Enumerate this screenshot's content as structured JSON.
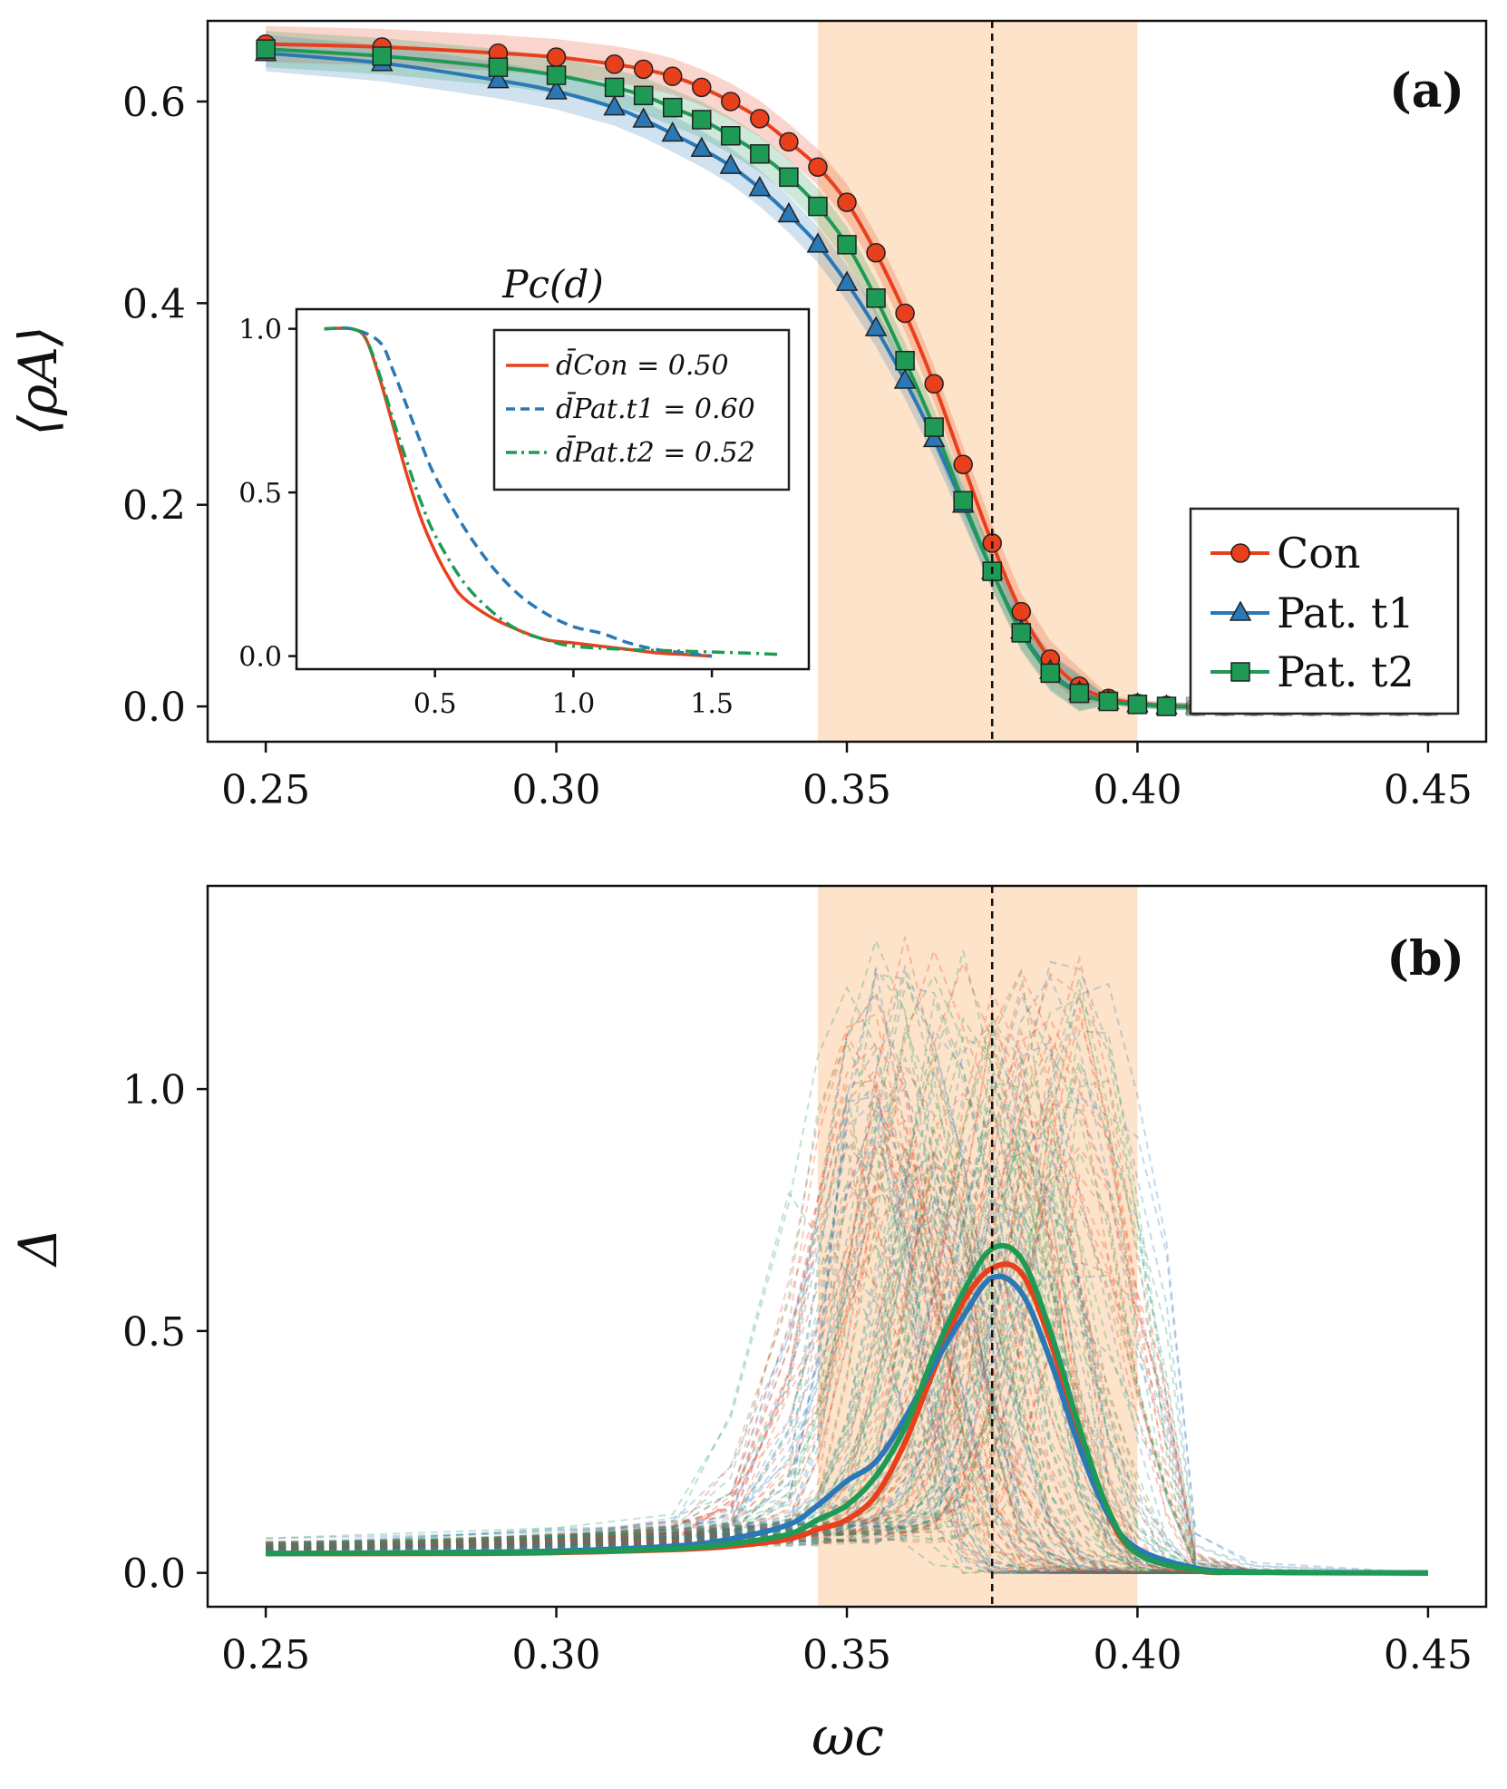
{
  "colors": {
    "con": "#e8401c",
    "pat1": "#2a78b5",
    "pat2": "#1f9a55",
    "band": "#fde3c9"
  },
  "chart_data": [
    {
      "panel": "(a)",
      "type": "line",
      "xlim": [
        0.24,
        0.46
      ],
      "ylim": [
        -0.035,
        0.68
      ],
      "xticks": [
        "0.25",
        "0.30",
        "0.35",
        "0.40",
        "0.45"
      ],
      "yticks": [
        "0.0",
        "0.2",
        "0.4",
        "0.6"
      ],
      "ylabel": "⟨ρA⟩",
      "critical_line": 0.375,
      "shaded_range": [
        0.345,
        0.4
      ],
      "legend_location": "right",
      "series": [
        {
          "key": "con",
          "name": "Con",
          "marker": "circle",
          "x": [
            0.25,
            0.27,
            0.29,
            0.3,
            0.31,
            0.315,
            0.32,
            0.325,
            0.33,
            0.335,
            0.34,
            0.345,
            0.35,
            0.355,
            0.36,
            0.365,
            0.37,
            0.375,
            0.38,
            0.385,
            0.39,
            0.395,
            0.4,
            0.405,
            0.41,
            0.415,
            0.42,
            0.425,
            0.43,
            0.435,
            0.44,
            0.445,
            0.45
          ],
          "y": [
            0.657,
            0.654,
            0.648,
            0.644,
            0.637,
            0.632,
            0.625,
            0.614,
            0.6,
            0.583,
            0.56,
            0.535,
            0.5,
            0.45,
            0.39,
            0.32,
            0.24,
            0.162,
            0.094,
            0.047,
            0.02,
            0.008,
            0.003,
            0.001,
            0.0,
            0.0,
            0.0,
            0.0,
            0.0,
            0.0,
            0.0,
            0.0,
            0.0
          ]
        },
        {
          "key": "pat1",
          "name": "Pat. t1",
          "marker": "triangle",
          "x": [
            0.25,
            0.27,
            0.29,
            0.3,
            0.31,
            0.315,
            0.32,
            0.325,
            0.33,
            0.335,
            0.34,
            0.345,
            0.35,
            0.355,
            0.36,
            0.365,
            0.37,
            0.375,
            0.38,
            0.385,
            0.39,
            0.395,
            0.4,
            0.405,
            0.41,
            0.415,
            0.42,
            0.425,
            0.43,
            0.435,
            0.44,
            0.445,
            0.45
          ],
          "y": [
            0.648,
            0.638,
            0.621,
            0.61,
            0.594,
            0.582,
            0.568,
            0.553,
            0.536,
            0.514,
            0.488,
            0.458,
            0.42,
            0.375,
            0.323,
            0.265,
            0.2,
            0.134,
            0.075,
            0.035,
            0.014,
            0.005,
            0.002,
            0.0,
            0.0,
            0.0,
            0.0,
            0.0,
            0.0,
            0.0,
            0.0,
            0.0,
            0.0
          ]
        },
        {
          "key": "pat2",
          "name": "Pat. t2",
          "marker": "square",
          "x": [
            0.25,
            0.27,
            0.29,
            0.3,
            0.31,
            0.315,
            0.32,
            0.325,
            0.33,
            0.335,
            0.34,
            0.345,
            0.35,
            0.355,
            0.36,
            0.365,
            0.37,
            0.375,
            0.38,
            0.385,
            0.39,
            0.395,
            0.4,
            0.405,
            0.41,
            0.415,
            0.42,
            0.425,
            0.43,
            0.435,
            0.44,
            0.445,
            0.45
          ],
          "y": [
            0.652,
            0.645,
            0.634,
            0.626,
            0.614,
            0.606,
            0.594,
            0.582,
            0.566,
            0.548,
            0.525,
            0.496,
            0.458,
            0.405,
            0.343,
            0.277,
            0.204,
            0.134,
            0.073,
            0.033,
            0.013,
            0.005,
            0.002,
            0.0,
            0.0,
            0.0,
            0.0,
            0.0,
            0.0,
            0.0,
            0.0,
            0.0,
            0.0
          ]
        }
      ]
    },
    {
      "panel": "inset",
      "type": "line",
      "title": "Pc(d)",
      "xlim": [
        0.0,
        1.85
      ],
      "ylim": [
        -0.04,
        1.06
      ],
      "xticks": [
        "0.5",
        "1.0",
        "1.5"
      ],
      "yticks": [
        "0.0",
        "0.5",
        "1.0"
      ],
      "series": [
        {
          "key": "con",
          "name": "d̄Con = 0.50",
          "style": "solid",
          "x": [
            0.1,
            0.2,
            0.25,
            0.3,
            0.35,
            0.4,
            0.45,
            0.5,
            0.55,
            0.6,
            0.7,
            0.8,
            0.9,
            1.0,
            1.1,
            1.2,
            1.3,
            1.4,
            1.5
          ],
          "y": [
            1.0,
            1.0,
            0.97,
            0.85,
            0.7,
            0.55,
            0.42,
            0.32,
            0.24,
            0.18,
            0.12,
            0.08,
            0.05,
            0.04,
            0.03,
            0.02,
            0.01,
            0.005,
            0.0
          ]
        },
        {
          "key": "pat1",
          "name": "d̄Pat.t1 = 0.60",
          "style": "dashed",
          "x": [
            0.1,
            0.2,
            0.3,
            0.35,
            0.4,
            0.45,
            0.5,
            0.6,
            0.7,
            0.8,
            0.9,
            1.0,
            1.1,
            1.2,
            1.3,
            1.4,
            1.5
          ],
          "y": [
            1.0,
            1.0,
            0.96,
            0.87,
            0.76,
            0.65,
            0.55,
            0.4,
            0.28,
            0.19,
            0.13,
            0.09,
            0.07,
            0.04,
            0.02,
            0.01,
            0.0
          ]
        },
        {
          "key": "pat2",
          "name": "d̄Pat.t2 = 0.52",
          "style": "dashdot",
          "x": [
            0.1,
            0.2,
            0.25,
            0.3,
            0.35,
            0.4,
            0.45,
            0.5,
            0.6,
            0.7,
            0.8,
            0.9,
            1.0,
            1.2,
            1.4,
            1.6,
            1.75
          ],
          "y": [
            1.0,
            1.0,
            0.97,
            0.86,
            0.72,
            0.59,
            0.47,
            0.37,
            0.23,
            0.14,
            0.08,
            0.05,
            0.03,
            0.02,
            0.015,
            0.01,
            0.005
          ]
        }
      ]
    },
    {
      "panel": "(b)",
      "type": "line",
      "xlim": [
        0.24,
        0.46
      ],
      "ylim": [
        -0.07,
        1.42
      ],
      "xticks": [
        "0.25",
        "0.30",
        "0.35",
        "0.40",
        "0.45"
      ],
      "yticks": [
        "0.0",
        "0.5",
        "1.0"
      ],
      "xlabel": "ωc",
      "ylabel": "Δ",
      "critical_line": 0.375,
      "shaded_range": [
        0.345,
        0.4
      ],
      "background_runs": "many faint dashed single-realization curves, peaks between 0.34 and 0.40",
      "series": [
        {
          "key": "con",
          "name": "Con",
          "x": [
            0.25,
            0.28,
            0.3,
            0.32,
            0.33,
            0.34,
            0.345,
            0.35,
            0.355,
            0.36,
            0.365,
            0.37,
            0.375,
            0.38,
            0.385,
            0.39,
            0.395,
            0.4,
            0.41,
            0.42,
            0.45
          ],
          "y": [
            0.04,
            0.04,
            0.042,
            0.048,
            0.055,
            0.07,
            0.09,
            0.11,
            0.16,
            0.27,
            0.42,
            0.56,
            0.63,
            0.62,
            0.48,
            0.28,
            0.12,
            0.04,
            0.005,
            0.001,
            0.0
          ]
        },
        {
          "key": "pat1",
          "name": "Pat. t1",
          "x": [
            0.25,
            0.28,
            0.3,
            0.32,
            0.33,
            0.34,
            0.345,
            0.35,
            0.355,
            0.36,
            0.365,
            0.37,
            0.375,
            0.38,
            0.385,
            0.39,
            0.395,
            0.4,
            0.41,
            0.42,
            0.45
          ],
          "y": [
            0.04,
            0.042,
            0.045,
            0.055,
            0.07,
            0.1,
            0.14,
            0.19,
            0.23,
            0.32,
            0.43,
            0.53,
            0.61,
            0.58,
            0.44,
            0.26,
            0.12,
            0.05,
            0.01,
            0.002,
            0.0
          ]
        },
        {
          "key": "pat2",
          "name": "Pat. t2",
          "x": [
            0.25,
            0.28,
            0.3,
            0.32,
            0.33,
            0.34,
            0.345,
            0.35,
            0.355,
            0.36,
            0.365,
            0.37,
            0.375,
            0.38,
            0.385,
            0.39,
            0.395,
            0.4,
            0.41,
            0.42,
            0.45
          ],
          "y": [
            0.04,
            0.041,
            0.043,
            0.05,
            0.06,
            0.08,
            0.11,
            0.14,
            0.2,
            0.3,
            0.45,
            0.58,
            0.67,
            0.65,
            0.5,
            0.3,
            0.13,
            0.04,
            0.006,
            0.001,
            0.0
          ]
        }
      ]
    }
  ]
}
